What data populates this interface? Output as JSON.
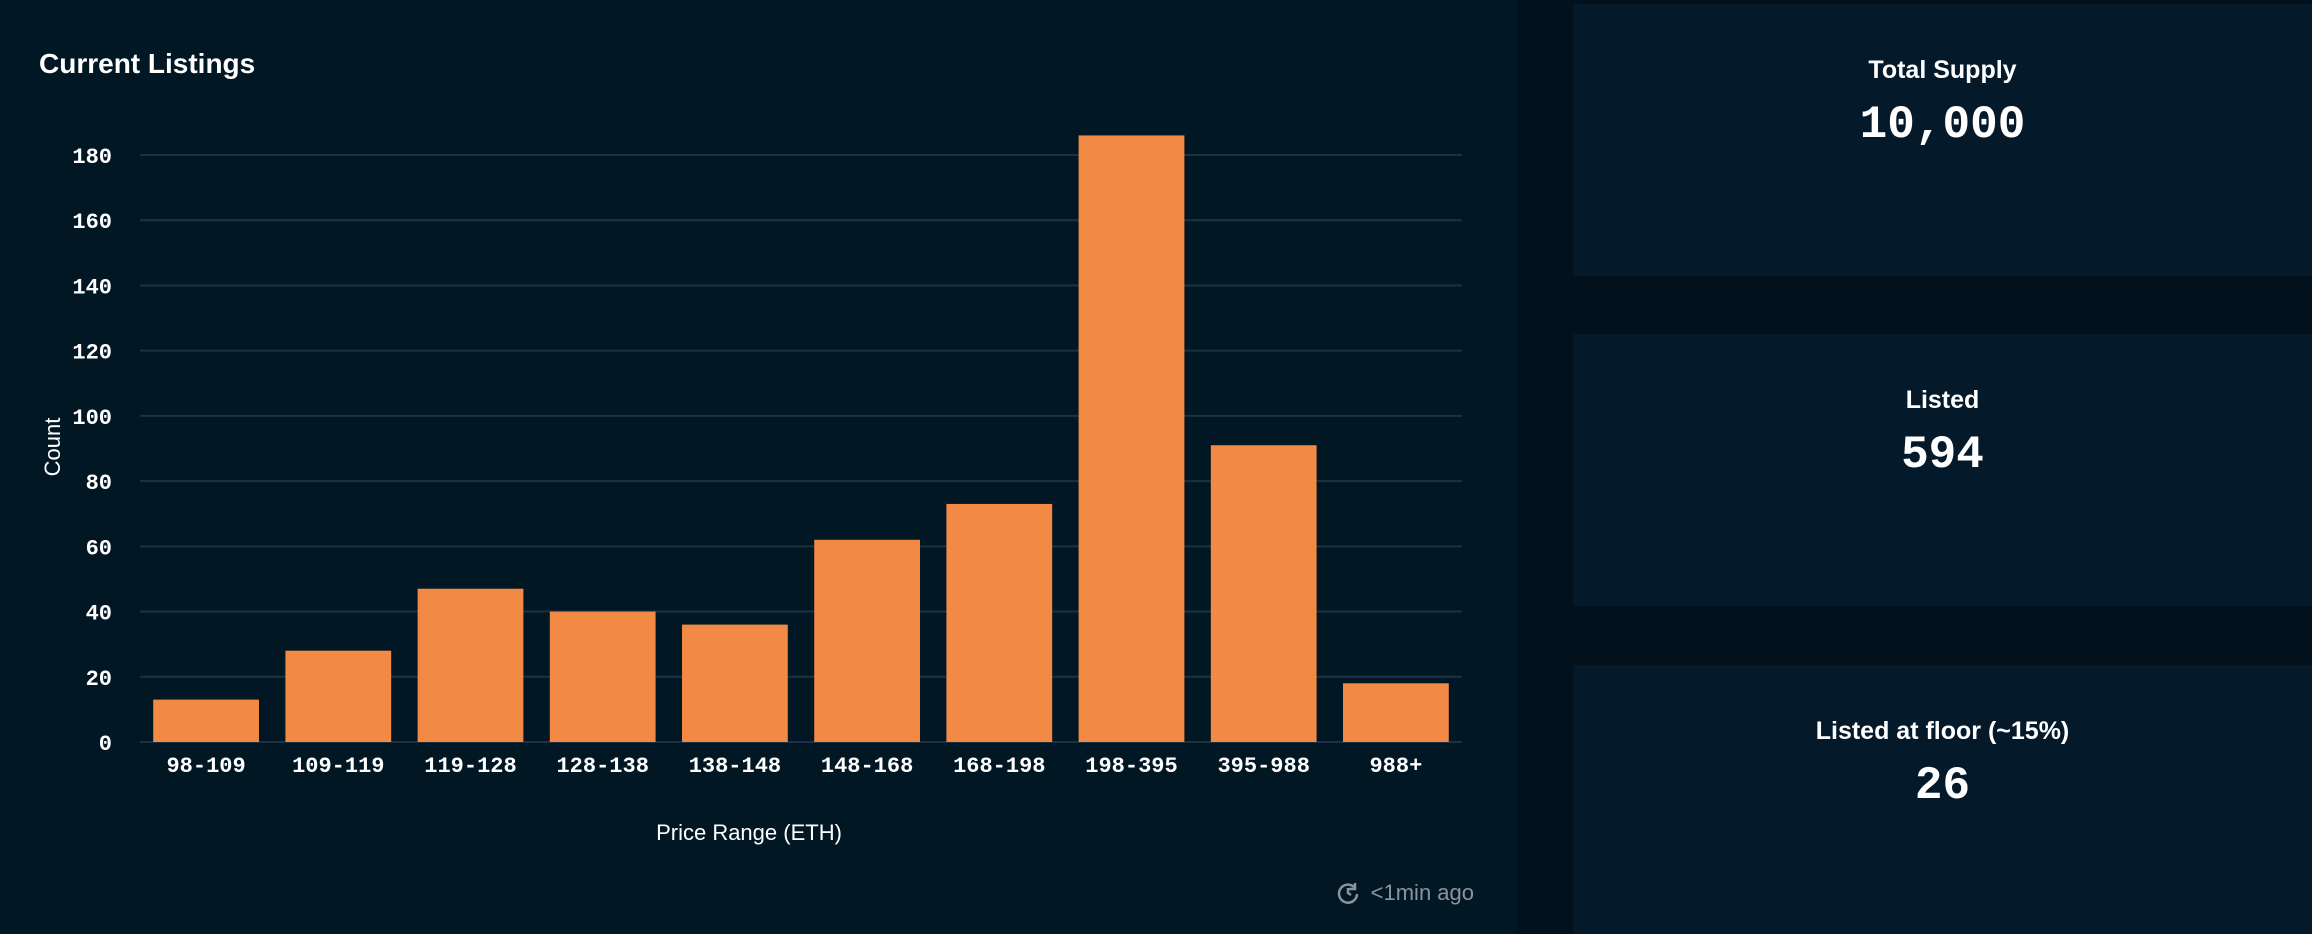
{
  "panel": {
    "title": "Current Listings"
  },
  "refresh": {
    "icon": "refresh-clock-icon",
    "text": "<1min ago"
  },
  "stats": [
    {
      "label": "Total Supply",
      "value": "10,000"
    },
    {
      "label": "Listed",
      "value": "594"
    },
    {
      "label": "Listed at floor (~15%)",
      "value": "26"
    }
  ],
  "colors": {
    "bar": "#f28a45",
    "grid": "#1c3244",
    "background": "#021724",
    "card": "#04192a"
  },
  "chart_data": {
    "type": "bar",
    "categories": [
      "98-109",
      "109-119",
      "119-128",
      "128-138",
      "138-148",
      "148-168",
      "168-198",
      "198-395",
      "395-988",
      "988+"
    ],
    "values": [
      13,
      28,
      47,
      40,
      36,
      62,
      73,
      186,
      91,
      18
    ],
    "title": "",
    "xlabel": "Price Range (ETH)",
    "ylabel": "Count",
    "ylim": [
      0,
      180
    ],
    "yticks": [
      0,
      20,
      40,
      60,
      80,
      100,
      120,
      140,
      160,
      180
    ],
    "grid": true
  }
}
